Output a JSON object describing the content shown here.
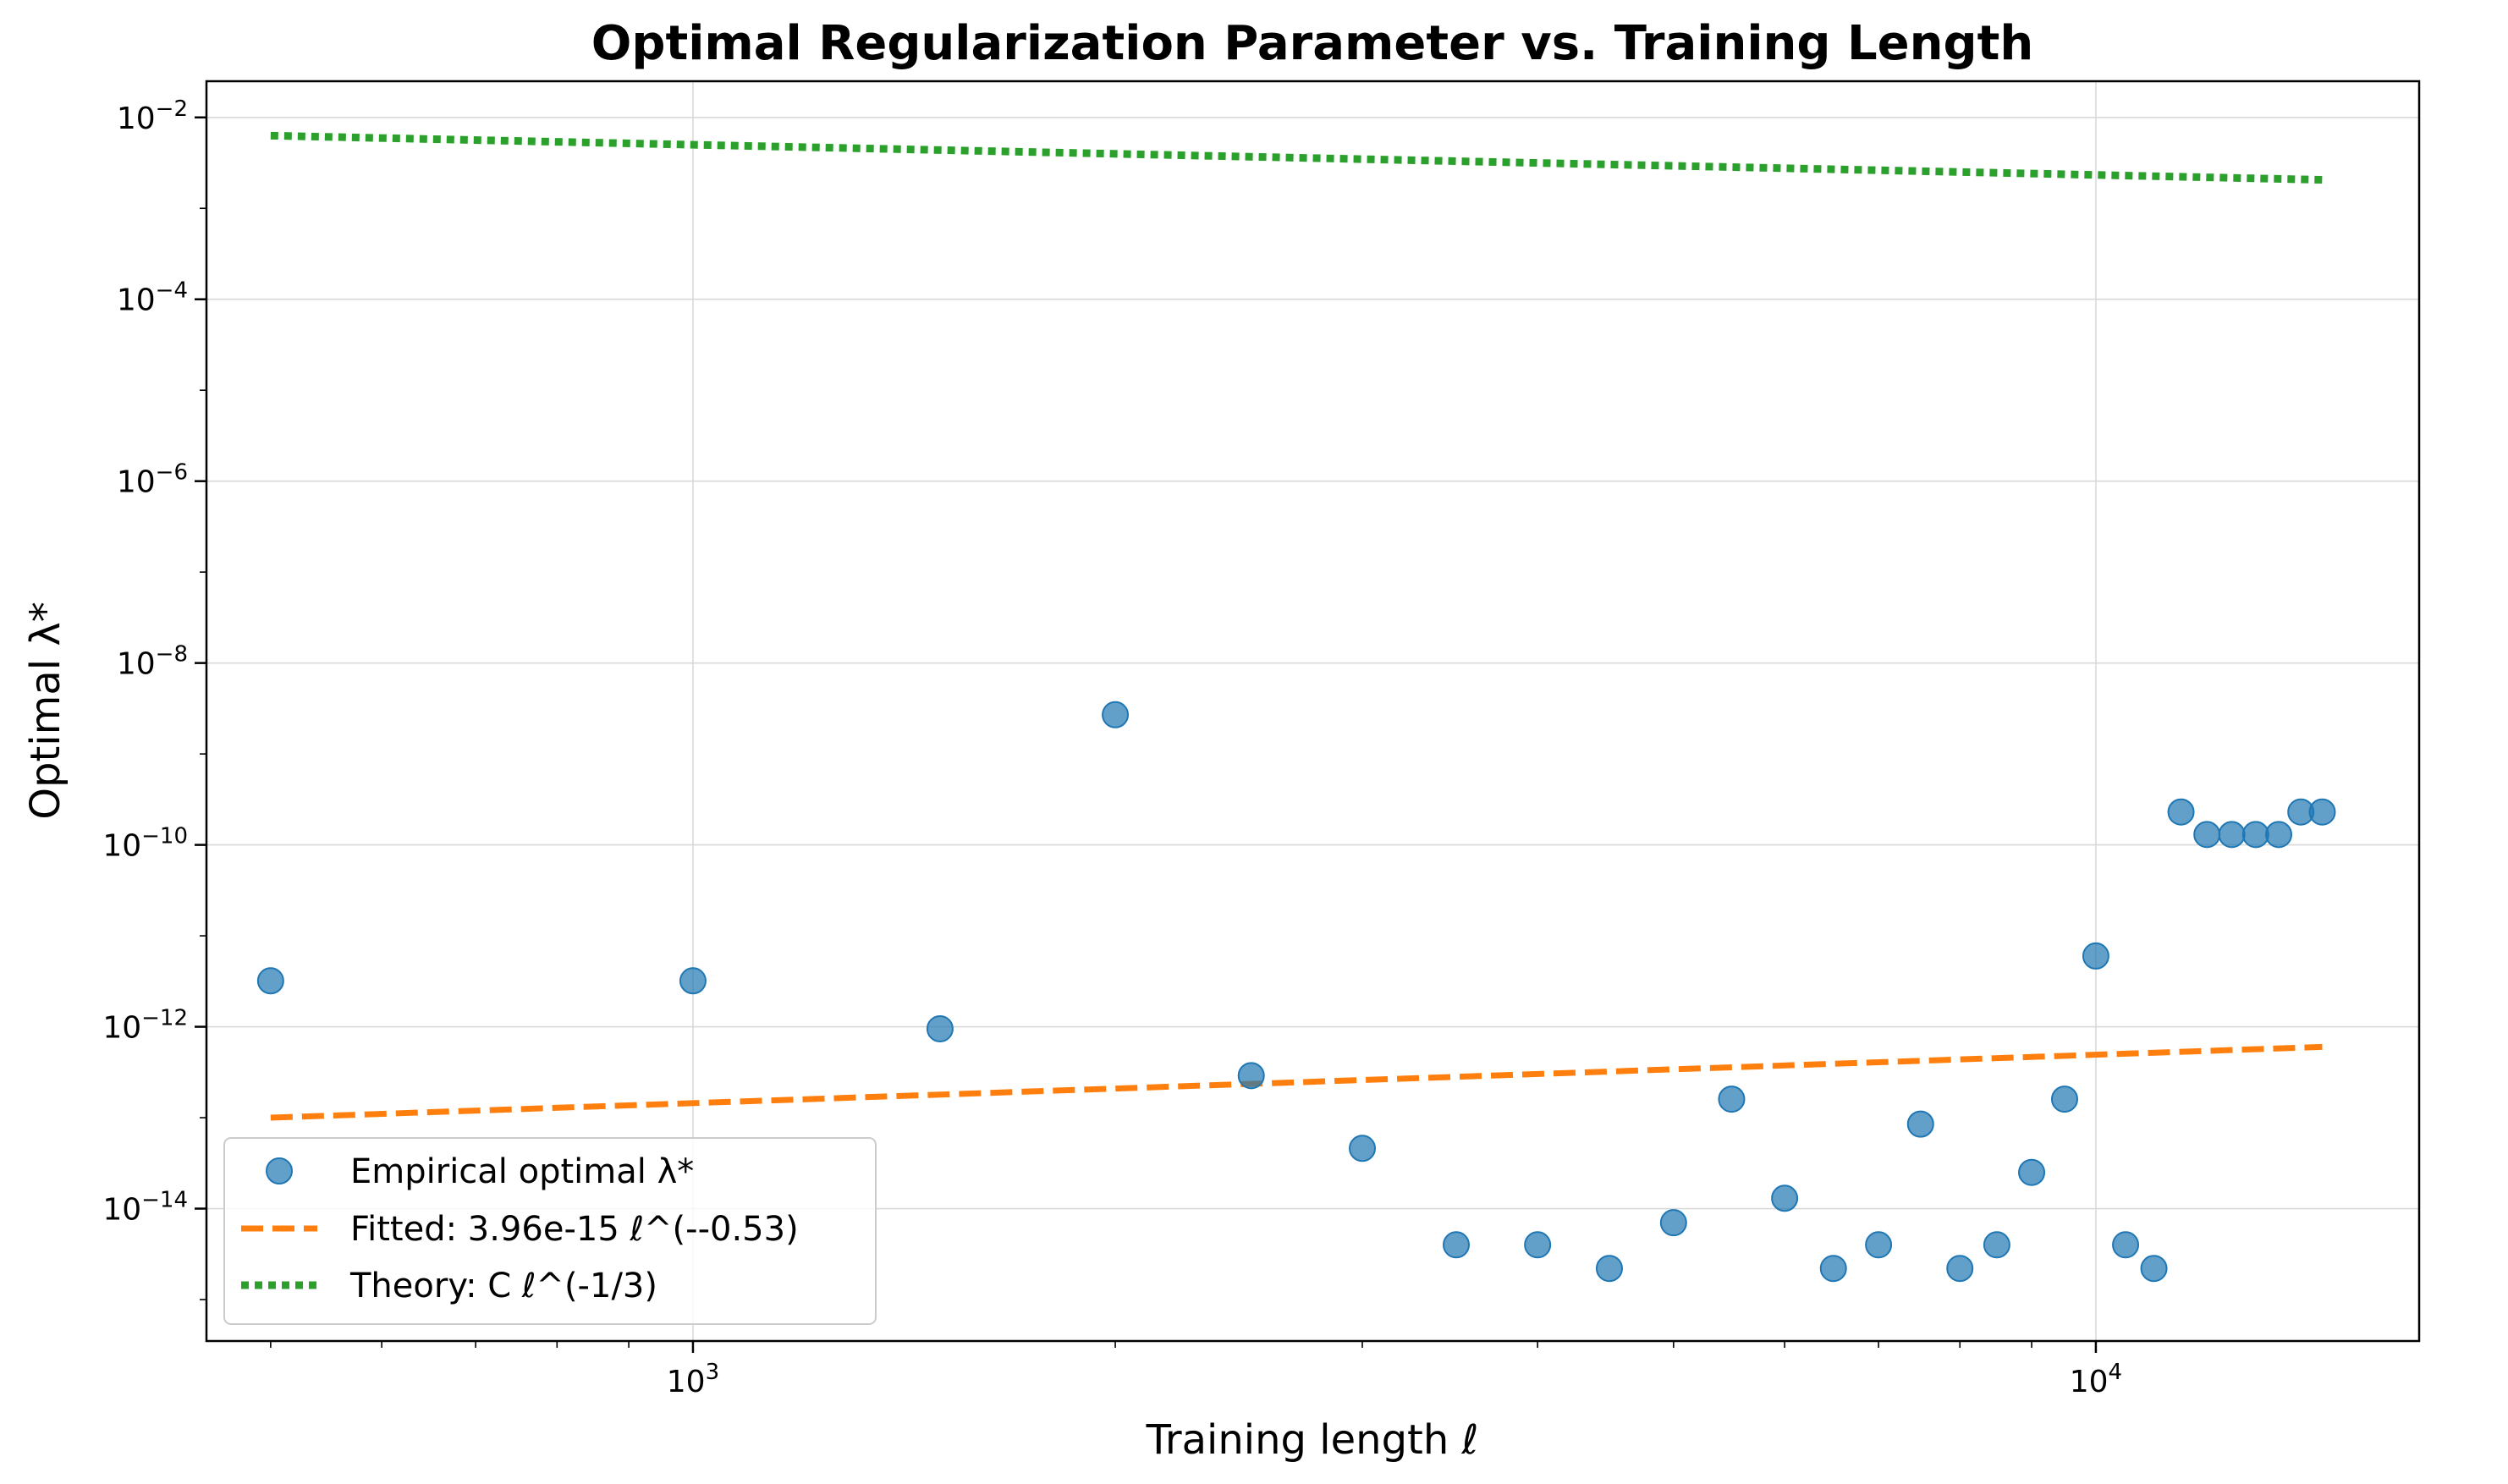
{
  "chart_data": {
    "type": "scatter",
    "title": "Optimal Regularization Parameter vs. Training Length",
    "xlabel": "Training length ℓ",
    "ylabel": "Optimal λ*",
    "xscale": "log",
    "yscale": "log",
    "xlim": [
      450,
      17000
    ],
    "ylim": [
      3.5e-16,
      0.025
    ],
    "grid": true,
    "legend_position": "lower-left",
    "x_ticks": [
      {
        "value": 1000,
        "base": "10",
        "exp": "3"
      },
      {
        "value": 10000,
        "base": "10",
        "exp": "4"
      }
    ],
    "y_ticks": [
      {
        "value": 1e-14,
        "base": "10",
        "exp": "−14"
      },
      {
        "value": 1e-12,
        "base": "10",
        "exp": "−12"
      },
      {
        "value": 1e-10,
        "base": "10",
        "exp": "−10"
      },
      {
        "value": 1e-08,
        "base": "10",
        "exp": "−8"
      },
      {
        "value": 1e-06,
        "base": "10",
        "exp": "−6"
      },
      {
        "value": 0.0001,
        "base": "10",
        "exp": "−4"
      },
      {
        "value": 0.01,
        "base": "10",
        "exp": "−2"
      }
    ],
    "series": [
      {
        "name": "Empirical optimal λ*",
        "kind": "scatter",
        "color": "#1f77b4",
        "x": [
          500,
          1000,
          1500,
          2000,
          2500,
          3000,
          3500,
          4000,
          4500,
          5000,
          5500,
          6000,
          6500,
          7000,
          7500,
          8000,
          8500,
          9000,
          9500,
          10000,
          10500,
          11000,
          11500,
          12000,
          12500,
          13000,
          13500,
          14000,
          14500
        ],
        "y": [
          3.2e-12,
          3.2e-12,
          9.5e-13,
          2.7e-09,
          2.9e-13,
          4.6e-14,
          4e-15,
          4e-15,
          2.2e-15,
          7e-15,
          1.6e-13,
          1.3e-14,
          2.2e-15,
          4e-15,
          8.5e-14,
          2.2e-15,
          4e-15,
          2.5e-14,
          1.6e-13,
          6e-12,
          4e-15,
          2.2e-15,
          2.3e-10,
          1.3e-10,
          1.3e-10,
          1.3e-10,
          1.3e-10,
          2.3e-10,
          2.3e-10
        ]
      },
      {
        "name": "Fitted: 3.96e-15 ℓ^(--0.53)",
        "kind": "line",
        "style": "dashed",
        "color": "#ff7f0e",
        "x": [
          500,
          14500
        ],
        "y": [
          1e-13,
          6e-13
        ]
      },
      {
        "name": "Theory: C ℓ^(-1/3)",
        "kind": "line",
        "style": "dotted",
        "color": "#2ca02c",
        "x": [
          500,
          14500
        ],
        "y": [
          0.0063,
          0.00206
        ]
      }
    ]
  }
}
